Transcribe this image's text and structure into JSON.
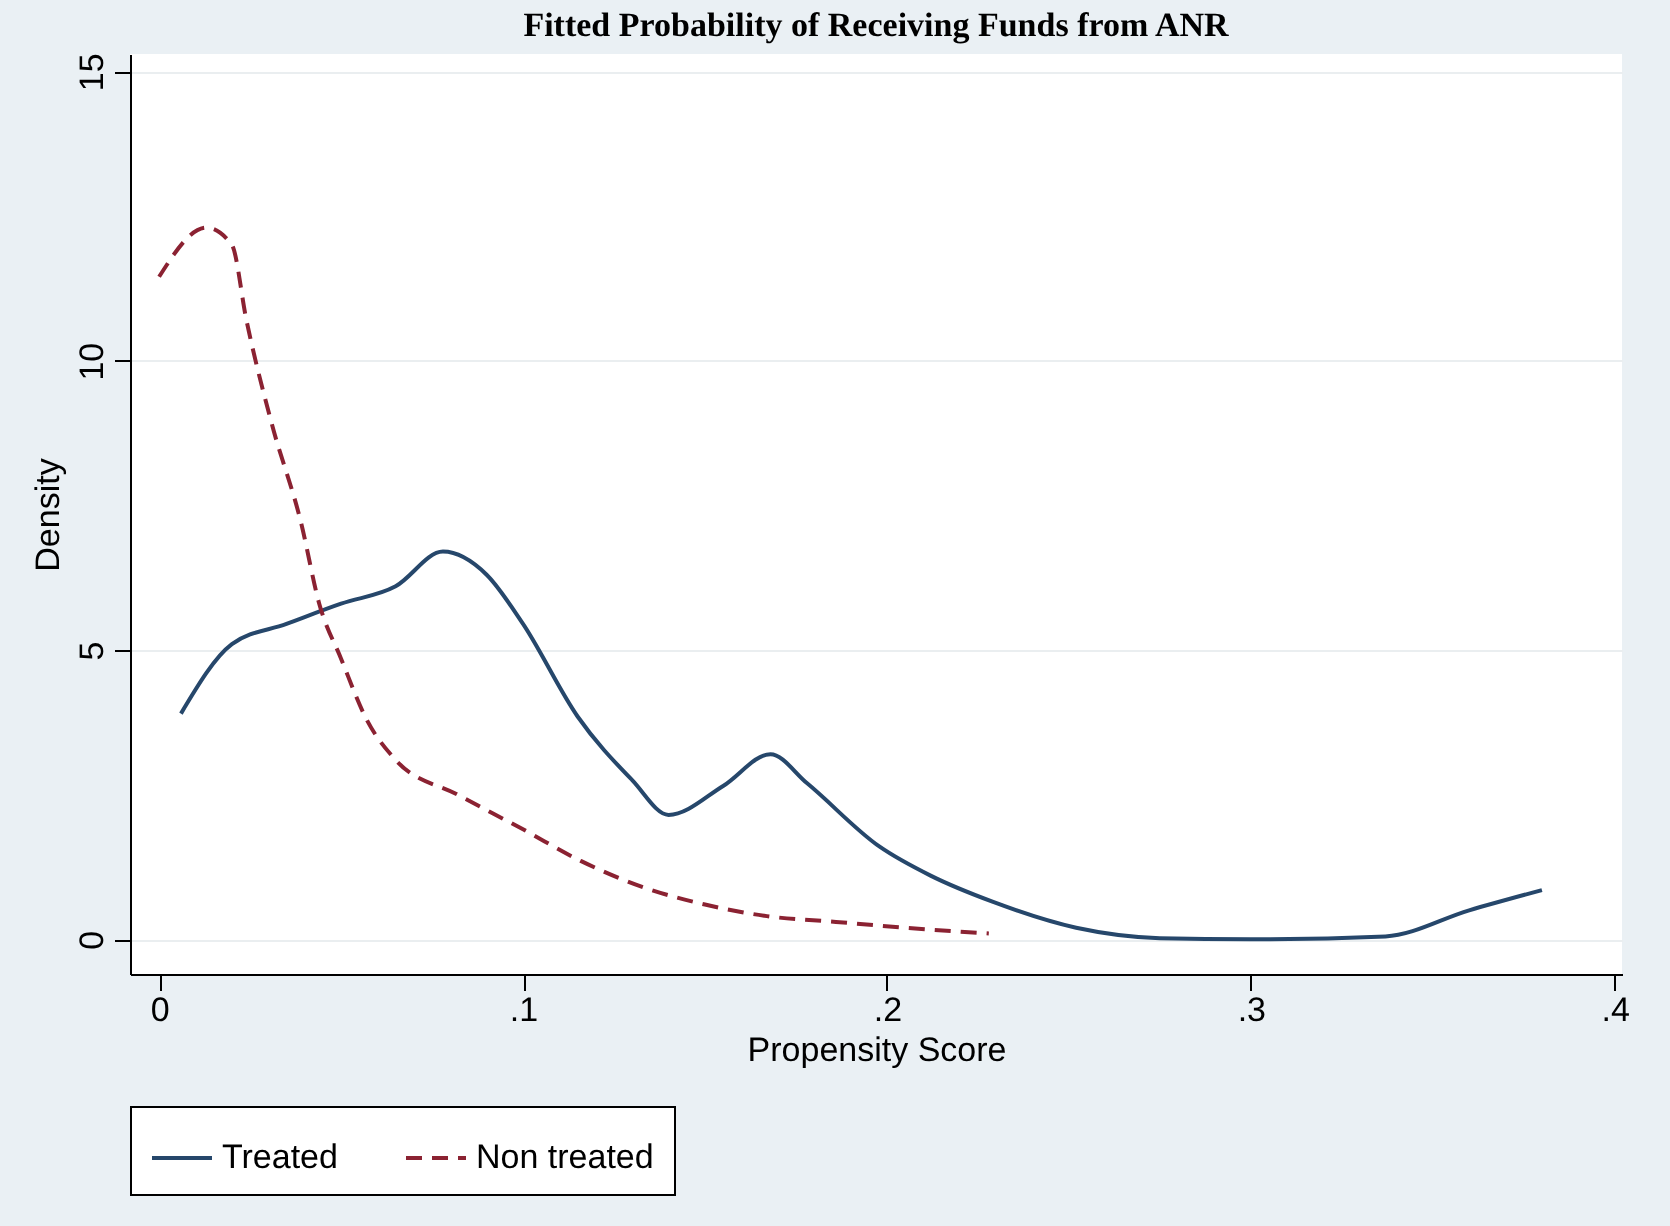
{
  "chart_data": {
    "type": "line",
    "title": "Fitted Probability of Receiving Funds from ANR",
    "xlabel": "Propensity Score",
    "ylabel": "Density",
    "xlim": [
      -0.008,
      0.402
    ],
    "ylim": [
      -0.6,
      15.3
    ],
    "xticks": [
      0,
      {
        "value": 0.1,
        "label": ".1"
      },
      {
        "value": 0.2,
        "label": ".2"
      },
      {
        "value": 0.3,
        "label": ".3"
      },
      {
        "value": 0.4,
        "label": ".4"
      }
    ],
    "yticks": [
      0,
      5,
      10,
      15
    ],
    "grid": "y",
    "legend": "bottom",
    "series": [
      {
        "name": "Treated",
        "color": "#26476b",
        "line_style": "solid",
        "x": [
          0.006,
          0.02,
          0.035,
          0.05,
          0.065,
          0.078,
          0.09,
          0.1,
          0.115,
          0.13,
          0.14,
          0.155,
          0.168,
          0.178,
          0.198,
          0.212,
          0.229,
          0.252,
          0.275,
          0.3,
          0.337,
          0.36,
          0.38
        ],
        "values": [
          3.9,
          5.1,
          5.45,
          5.8,
          6.1,
          6.7,
          6.3,
          5.45,
          3.85,
          2.75,
          2.15,
          2.65,
          3.2,
          2.7,
          1.6,
          1.1,
          0.65,
          0.2,
          0.02,
          0,
          0.05,
          0.5,
          0.85
        ]
      },
      {
        "name": "Non treated",
        "color": "#8b2232",
        "line_style": "dashed",
        "x": [
          0.0,
          0.013,
          0.02,
          0.024,
          0.031,
          0.039,
          0.044,
          0.05,
          0.057,
          0.065,
          0.082,
          0.1,
          0.116,
          0.133,
          0.15,
          0.167,
          0.186,
          0.205,
          0.228
        ],
        "values": [
          11.45,
          12.3,
          12.0,
          10.7,
          8.9,
          7.2,
          5.8,
          4.85,
          3.8,
          3.1,
          2.5,
          1.9,
          1.35,
          0.9,
          0.6,
          0.4,
          0.3,
          0.2,
          0.1
        ]
      }
    ]
  }
}
